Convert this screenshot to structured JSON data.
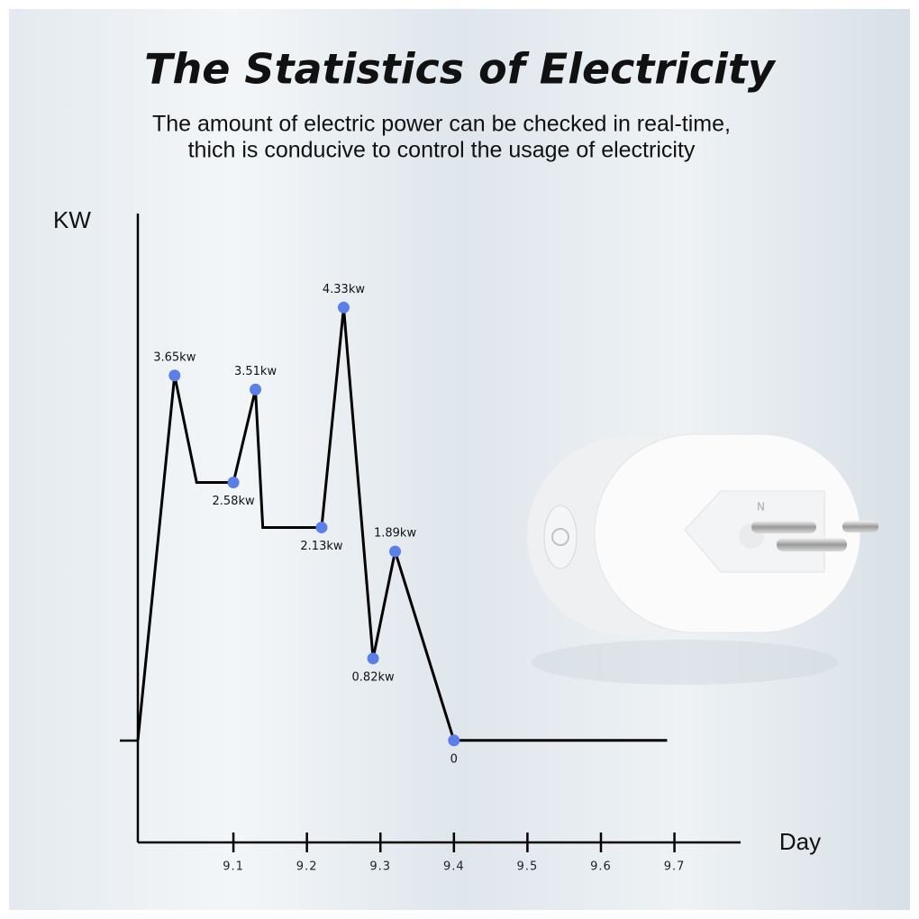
{
  "chart_data": {
    "type": "line",
    "title": "The Statistics of Electricity",
    "subtitle": [
      "The amount of electric power can be checked in real-time,",
      "thich is conducive to control the usage of electricity"
    ],
    "y_label": "KW",
    "x_label": "Day",
    "x": [
      8.97,
      9.02,
      9.05,
      9.1,
      9.13,
      9.14,
      9.22,
      9.25,
      9.29,
      9.32,
      9.4,
      9.69
    ],
    "values": [
      0,
      3.65,
      2.58,
      2.58,
      3.51,
      2.13,
      2.13,
      4.33,
      0.82,
      1.89,
      0,
      0
    ],
    "value_labels": [
      null,
      "3.65kw",
      null,
      "2.58kw",
      "3.51kw",
      null,
      "2.13kw",
      "4.33kw",
      "0.82kw",
      "1.89kw",
      "0",
      null
    ],
    "color": "#000000",
    "marker_color": "#5b7fe8",
    "xlim": [
      8.97,
      9.79
    ],
    "xticks": [
      9.1,
      9.2,
      9.3,
      9.4,
      9.5,
      9.6,
      9.7
    ],
    "ylim": [
      -1.02,
      5.27
    ]
  }
}
